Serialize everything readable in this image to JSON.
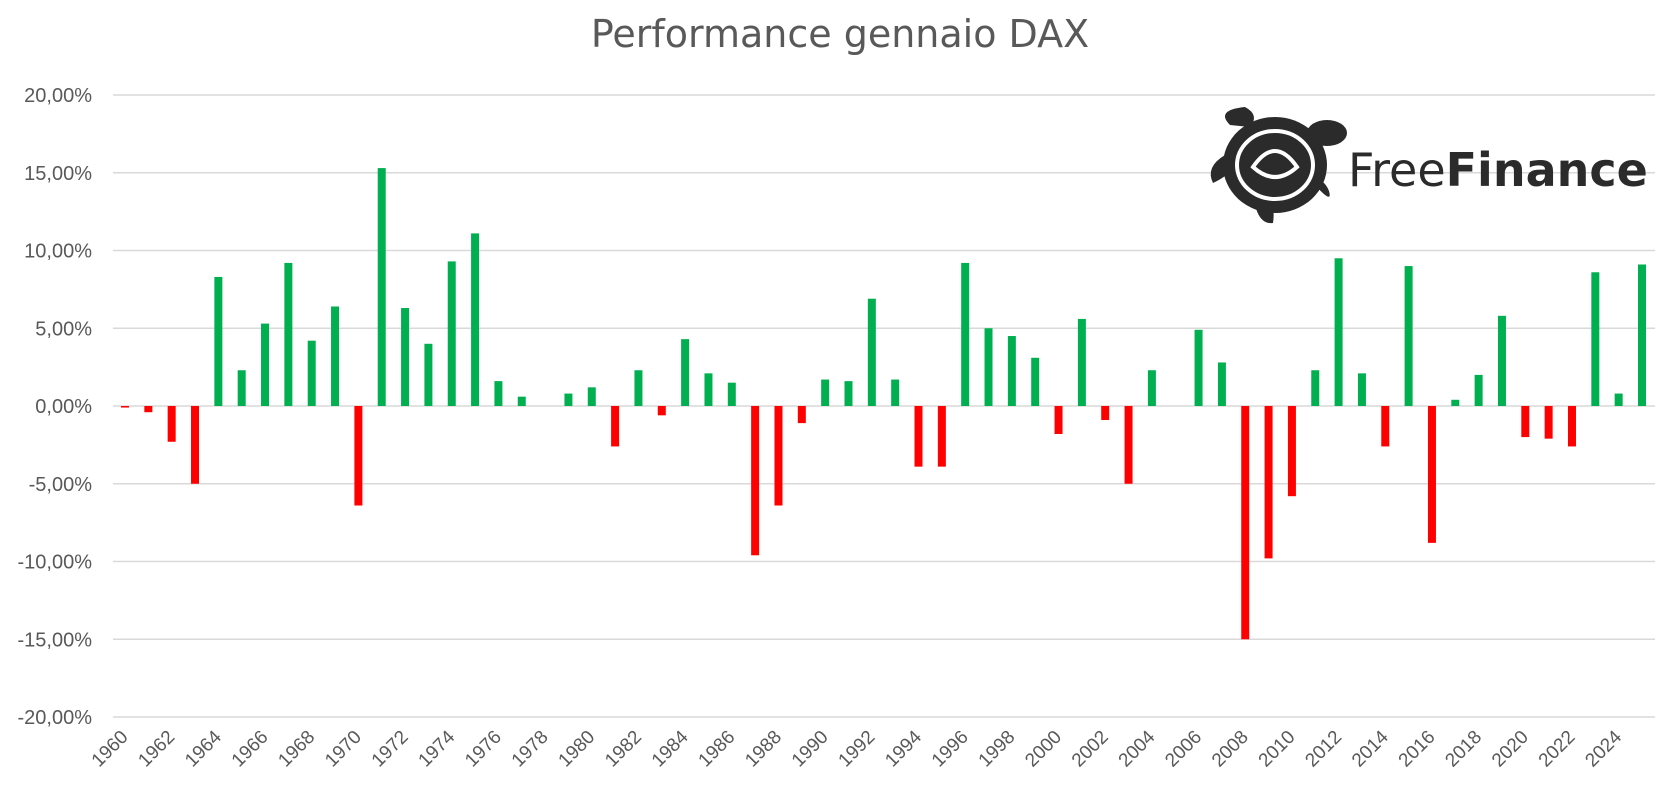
{
  "chart_data": {
    "type": "bar",
    "title": "Performance gennaio DAX",
    "xlabel": "",
    "ylabel": "",
    "ylim": [
      -20,
      20
    ],
    "y_ticks": [
      20,
      15,
      10,
      5,
      0,
      -5,
      -10,
      -15,
      -20
    ],
    "y_tick_labels": [
      "20,00%",
      "15,00%",
      "10,00%",
      "5,00%",
      "0,00%",
      "-5,00%",
      "-10,00%",
      "-15,00%",
      "-20,00%"
    ],
    "x_tick_labels": [
      "1960",
      "1962",
      "1964",
      "1966",
      "1968",
      "1970",
      "1972",
      "1974",
      "1976",
      "1978",
      "1980",
      "1982",
      "1984",
      "1986",
      "1988",
      "1990",
      "1992",
      "1994",
      "1996",
      "1998",
      "2000",
      "2002",
      "2004",
      "2006",
      "2008",
      "2010",
      "2012",
      "2014",
      "2016",
      "2018",
      "2020",
      "2022",
      "2024"
    ],
    "categories": [
      1960,
      1961,
      1962,
      1963,
      1964,
      1965,
      1966,
      1967,
      1968,
      1969,
      1970,
      1971,
      1972,
      1973,
      1974,
      1975,
      1976,
      1977,
      1978,
      1979,
      1980,
      1981,
      1982,
      1983,
      1984,
      1985,
      1986,
      1987,
      1988,
      1989,
      1990,
      1991,
      1992,
      1993,
      1994,
      1995,
      1996,
      1997,
      1998,
      1999,
      2000,
      2001,
      2002,
      2003,
      2004,
      2005,
      2006,
      2007,
      2008,
      2009,
      2010,
      2011,
      2012,
      2013,
      2014,
      2015,
      2016,
      2017,
      2018,
      2019,
      2020,
      2021,
      2022,
      2023,
      2024,
      2025
    ],
    "values": [
      -0.1,
      -0.4,
      -2.3,
      -5.0,
      8.3,
      2.3,
      5.3,
      9.2,
      4.2,
      6.4,
      -6.4,
      15.3,
      6.3,
      4.0,
      9.3,
      11.1,
      1.6,
      0.6,
      0.0,
      0.8,
      1.2,
      -2.6,
      2.3,
      -0.6,
      4.3,
      2.1,
      1.5,
      -9.6,
      -6.4,
      -1.1,
      1.7,
      1.6,
      6.9,
      1.7,
      -3.9,
      -3.9,
      9.2,
      5.0,
      4.5,
      3.1,
      -1.8,
      5.6,
      -0.9,
      -5.0,
      2.3,
      0.0,
      4.9,
      2.8,
      -15.0,
      -9.8,
      -5.8,
      2.3,
      9.5,
      2.1,
      -2.6,
      9.0,
      -8.8,
      0.4,
      2.0,
      5.8,
      -2.0,
      -2.1,
      -2.6,
      8.6,
      0.8,
      9.1
    ],
    "colors": {
      "positive": "#00b050",
      "negative": "#ff0000",
      "grid": "#d9d9d9",
      "text": "#595959"
    },
    "grid": true,
    "legend": "none"
  },
  "logo": {
    "text_light": "Free",
    "text_bold": "Finance",
    "icon": "turtle-icon"
  }
}
